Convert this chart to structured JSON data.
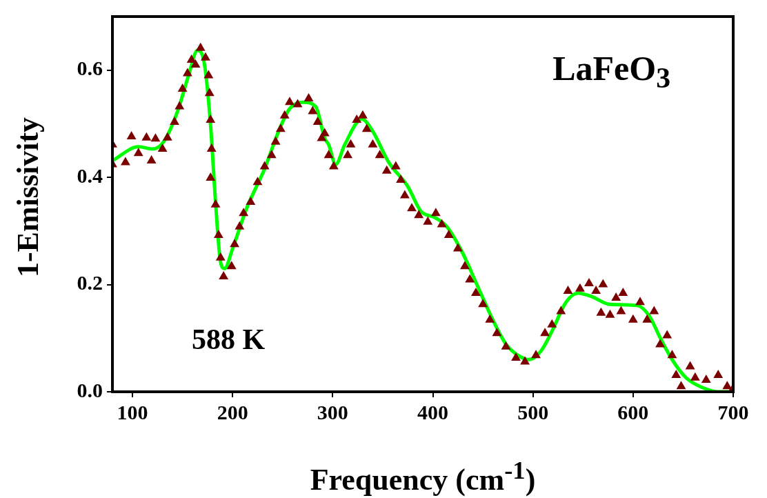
{
  "chart_data": {
    "type": "scatter",
    "xlabel": "Frequency (cm$^{-1}$)",
    "ylabel": "1-Emissivity",
    "annotations": [
      "LaFeO$_{3}$",
      "588 K"
    ],
    "xlim": [
      80,
      700
    ],
    "xticks": [
      100,
      200,
      300,
      400,
      500,
      600,
      700
    ],
    "ylim": [
      0,
      0.7
    ],
    "yticks": [
      {
        "value": 0,
        "label": "0.0"
      },
      {
        "value": 0.2,
        "label": "0.2"
      },
      {
        "value": 0.4,
        "label": "0.4"
      },
      {
        "value": 0.6,
        "label": "0.6"
      }
    ],
    "grid": false,
    "legend": false,
    "series": [
      {
        "type": "scatter",
        "marker": "triangle",
        "color": "#7b0000",
        "x": [
          80,
          80,
          93,
          99,
          106,
          114,
          119,
          123,
          130,
          135,
          142,
          147,
          150,
          155,
          159,
          163,
          168,
          173,
          176,
          177,
          178,
          179,
          178,
          183,
          186,
          188,
          191,
          199,
          202,
          207,
          211,
          218,
          225,
          232,
          239,
          243,
          248,
          252,
          257,
          265,
          276,
          280,
          285,
          289,
          292,
          296,
          301,
          315,
          318,
          324,
          330,
          334,
          340,
          347,
          354,
          363,
          368,
          372,
          379,
          386,
          395,
          403,
          409,
          416,
          425,
          432,
          437,
          443,
          450,
          457,
          464,
          473,
          483,
          492,
          503,
          512,
          519,
          528,
          535,
          547,
          556,
          563,
          570,
          568,
          577,
          583,
          590,
          588,
          600,
          607,
          614,
          621,
          627,
          634,
          639,
          643,
          648,
          657,
          662,
          673,
          685,
          694,
          699
        ],
        "values": [
          0.461,
          0.424,
          0.428,
          0.476,
          0.445,
          0.474,
          0.431,
          0.472,
          0.453,
          0.474,
          0.503,
          0.532,
          0.565,
          0.594,
          0.619,
          0.61,
          0.641,
          0.623,
          0.59,
          0.557,
          0.507,
          0.453,
          0.399,
          0.349,
          0.292,
          0.25,
          0.215,
          0.234,
          0.275,
          0.308,
          0.333,
          0.354,
          0.391,
          0.42,
          0.441,
          0.466,
          0.49,
          0.515,
          0.54,
          0.536,
          0.547,
          0.523,
          0.503,
          0.473,
          0.482,
          0.441,
          0.42,
          0.441,
          0.461,
          0.507,
          0.515,
          0.49,
          0.461,
          0.441,
          0.412,
          0.42,
          0.395,
          0.366,
          0.342,
          0.329,
          0.317,
          0.333,
          0.312,
          0.292,
          0.267,
          0.234,
          0.209,
          0.184,
          0.163,
          0.134,
          0.109,
          0.084,
          0.063,
          0.056,
          0.068,
          0.109,
          0.125,
          0.15,
          0.188,
          0.192,
          0.202,
          0.188,
          0.2,
          0.147,
          0.143,
          0.175,
          0.184,
          0.15,
          0.134,
          0.167,
          0.134,
          0.15,
          0.088,
          0.105,
          0.068,
          0.031,
          0.01,
          0.047,
          0.026,
          0.022,
          0.031,
          0.01,
          0.003
        ]
      },
      {
        "type": "line",
        "marker": "none",
        "color": "#00ff00",
        "x": [
          80,
          106,
          120,
          131,
          145,
          156,
          165,
          172,
          178,
          183,
          188,
          192,
          200,
          214,
          232,
          246,
          257,
          271,
          283,
          292,
          296,
          303,
          312,
          329,
          340,
          356,
          375,
          388,
          402,
          414,
          430,
          444,
          460,
          473,
          485,
          496,
          508,
          519,
          533,
          545,
          558,
          577,
          604,
          616,
          627,
          639,
          653,
          669,
          685,
          700
        ],
        "values": [
          0.431,
          0.457,
          0.453,
          0.466,
          0.523,
          0.59,
          0.637,
          0.61,
          0.498,
          0.354,
          0.242,
          0.23,
          0.267,
          0.342,
          0.416,
          0.486,
          0.528,
          0.54,
          0.532,
          0.473,
          0.461,
          0.424,
          0.461,
          0.509,
          0.486,
          0.428,
          0.383,
          0.337,
          0.325,
          0.308,
          0.258,
          0.2,
          0.134,
          0.089,
          0.068,
          0.06,
          0.076,
          0.113,
          0.167,
          0.184,
          0.178,
          0.163,
          0.161,
          0.142,
          0.101,
          0.06,
          0.026,
          0.008,
          0,
          0
        ]
      }
    ]
  }
}
